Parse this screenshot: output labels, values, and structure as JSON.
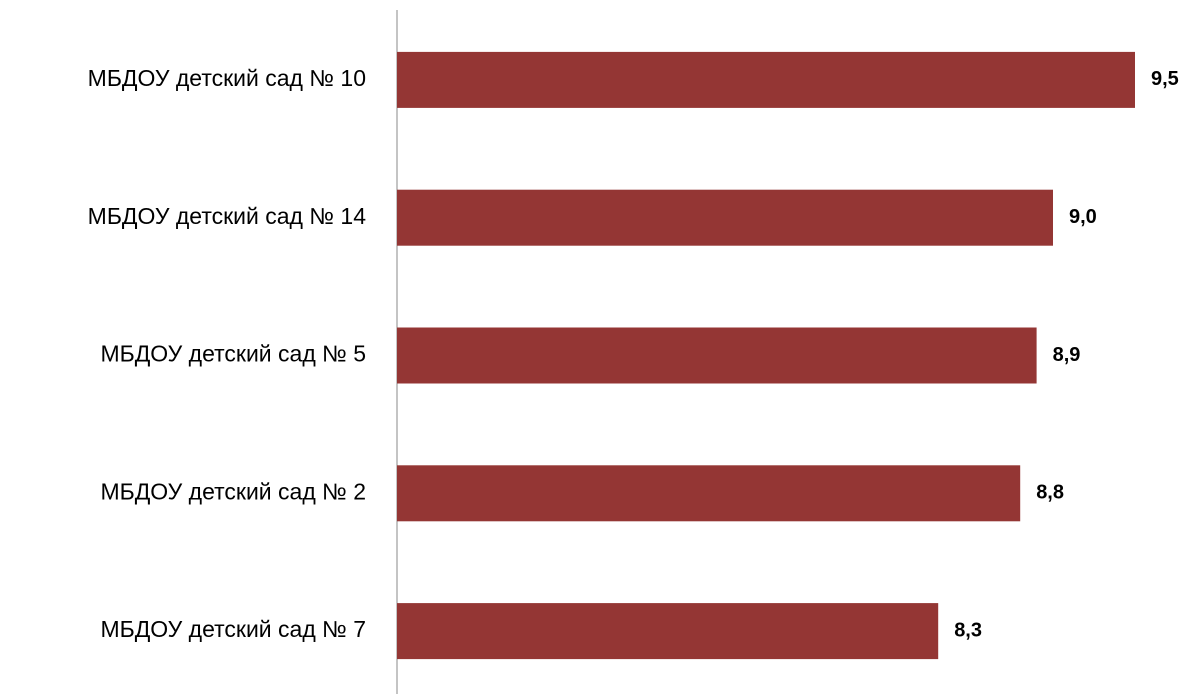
{
  "chart_data": {
    "type": "barh",
    "categories": [
      "МБДОУ детский сад № 10",
      "МБДОУ детский сад № 14",
      "МБДОУ детский сад № 5",
      "МБДОУ детский сад № 2",
      "МБДОУ детский сад № 7"
    ],
    "values": [
      9.5,
      9.0,
      8.9,
      8.8,
      8.3
    ],
    "value_labels": [
      "9,5",
      "9,0",
      "8,9",
      "8,8",
      "8,3"
    ],
    "color": "#943634",
    "xlim": [
      5,
      10
    ]
  }
}
